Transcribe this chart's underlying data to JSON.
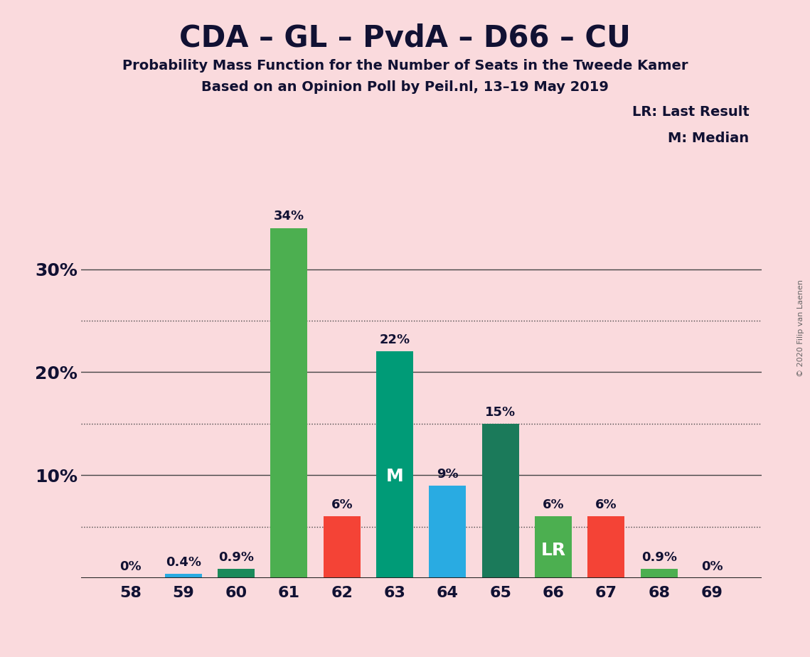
{
  "title": "CDA – GL – PvdA – D66 – CU",
  "subtitle1": "Probability Mass Function for the Number of Seats in the Tweede Kamer",
  "subtitle2": "Based on an Opinion Poll by Peil.nl, 13–19 May 2019",
  "copyright": "© 2020 Filip van Laenen",
  "legend_lr": "LR: Last Result",
  "legend_m": "M: Median",
  "seats": [
    58,
    59,
    60,
    61,
    62,
    63,
    64,
    65,
    66,
    67,
    68,
    69
  ],
  "values": [
    0.0,
    0.4,
    0.9,
    34.0,
    6.0,
    22.0,
    9.0,
    15.0,
    6.0,
    6.0,
    0.9,
    0.0
  ],
  "labels": [
    "0%",
    "0.4%",
    "0.9%",
    "34%",
    "6%",
    "22%",
    "9%",
    "15%",
    "6%",
    "6%",
    "0.9%",
    "0%"
  ],
  "colors": [
    "#29ABE2",
    "#29ABE2",
    "#1B8A5A",
    "#4CAF50",
    "#F44336",
    "#009B77",
    "#29ABE2",
    "#1B7A5A",
    "#4CAF50",
    "#F44336",
    "#4CAF50",
    "#29ABE2"
  ],
  "bar_annotations": [
    "",
    "",
    "",
    "",
    "",
    "M",
    "",
    "",
    "LR",
    "",
    "",
    ""
  ],
  "background_color": "#FADADD",
  "ylim": [
    0,
    37
  ],
  "yticks": [
    0,
    10,
    20,
    30
  ],
  "ytick_labels": [
    "",
    "10%",
    "20%",
    "30%"
  ],
  "dotted_gridlines": [
    5,
    15,
    25
  ],
  "solid_gridlines": [
    10,
    20,
    30
  ]
}
